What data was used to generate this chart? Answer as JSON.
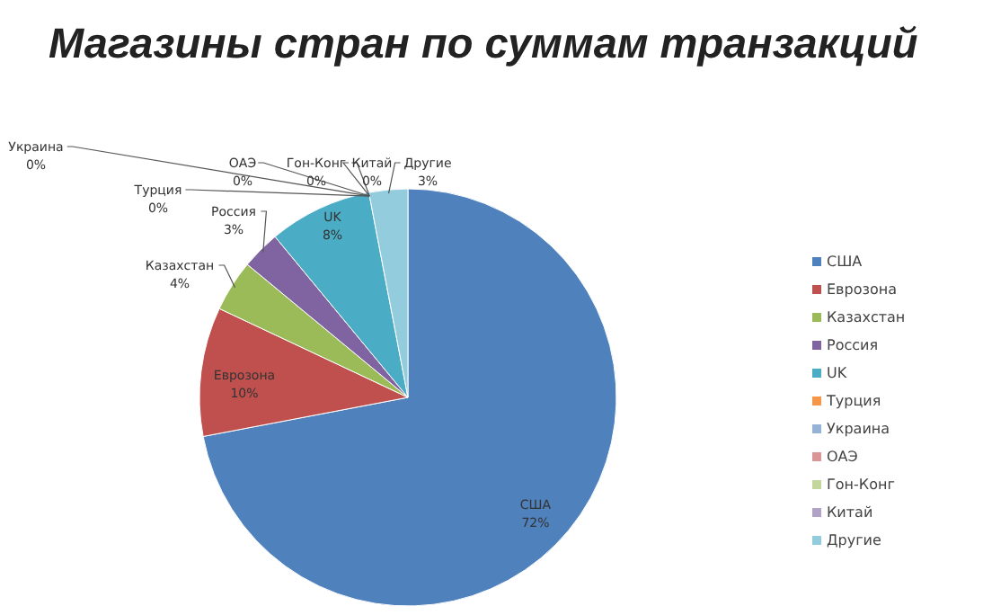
{
  "chart_data": {
    "type": "pie",
    "title": "Магазины стран по суммам транзакций",
    "categories": [
      "США",
      "Еврозона",
      "Казахстан",
      "Россия",
      "UK",
      "Турция",
      "Украина",
      "ОАЭ",
      "Гон-Конг",
      "Китай",
      "Другие"
    ],
    "values": [
      72,
      10,
      4,
      3,
      8,
      0,
      0,
      0,
      0,
      0,
      3
    ],
    "colors": [
      "#4f81bd",
      "#c0504d",
      "#9bbb59",
      "#8064a2",
      "#4bacc6",
      "#f79646",
      "#95b3d7",
      "#d99694",
      "#c3d69b",
      "#b2a2c7",
      "#93cddd"
    ],
    "value_labels": [
      "72%",
      "10%",
      "4%",
      "3%",
      "8%",
      "0%",
      "0%",
      "0%",
      "0%",
      "0%",
      "3%"
    ],
    "legend": "right"
  }
}
